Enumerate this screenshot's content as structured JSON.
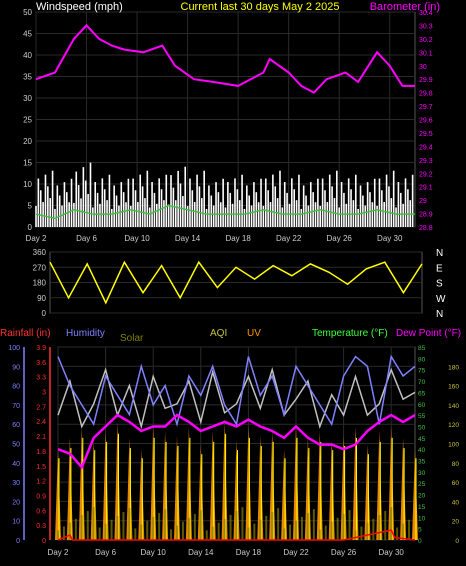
{
  "chart_data": [
    {
      "type": "line",
      "title": "Current last 30 days May 2 2025",
      "ylabel": "Windspeed (mph)",
      "y2label": "Barometer (in)",
      "xticks": [
        "Day 2",
        "Day 6",
        "Day 10",
        "Day 14",
        "Day 18",
        "Day 22",
        "Day 26",
        "Day 30"
      ],
      "ylim": [
        0,
        50
      ],
      "yticks": [
        "0",
        "5",
        "10",
        "15",
        "20",
        "25",
        "30",
        "35",
        "40",
        "45",
        "50"
      ],
      "y2lim": [
        28.8,
        30.4
      ],
      "y2ticks": [
        "28.8",
        "28.9",
        "29",
        "29.1",
        "29.2",
        "29.3",
        "29.4",
        "29.5",
        "29.6",
        "29.7",
        "29.8",
        "29.9",
        "30",
        "30.1",
        "30.2",
        "30.3",
        "30.4"
      ],
      "grid": true,
      "series": [
        {
          "key": "barometer",
          "color": "#ff00ff",
          "x": [
            0,
            1.5,
            3,
            4,
            5,
            6,
            7,
            8.5,
            10,
            11,
            12.5,
            14,
            16,
            17,
            18,
            18.5,
            20,
            21,
            22,
            23,
            24.5,
            25.5,
            27,
            28,
            29,
            30
          ],
          "values": [
            29.9,
            29.95,
            30.2,
            30.3,
            30.2,
            30.15,
            30.12,
            30.1,
            30.15,
            30.0,
            29.9,
            29.88,
            29.85,
            29.9,
            29.95,
            30.05,
            29.95,
            29.85,
            29.8,
            29.9,
            29.95,
            29.88,
            30.1,
            30.0,
            29.85,
            29.85
          ]
        },
        {
          "key": "windspeed_gust",
          "color": "#ffffff",
          "x": [
            0,
            1.5,
            3,
            4.5,
            6,
            7.5,
            9,
            10.5,
            12,
            13.5,
            15,
            16.5,
            18,
            19.5,
            21,
            22.5,
            24,
            25.5,
            27,
            28.5,
            30
          ],
          "values": [
            14,
            12,
            16,
            13,
            12,
            14,
            13,
            15,
            14,
            12,
            13,
            12,
            14,
            13,
            12,
            14,
            13,
            12,
            14,
            13,
            12
          ]
        },
        {
          "key": "windspeed",
          "color": "#40c040",
          "x": [
            0,
            1.5,
            3,
            4.5,
            6,
            7.5,
            9,
            10.5,
            12,
            13.5,
            15,
            16.5,
            18,
            19.5,
            21,
            22.5,
            24,
            25.5,
            27,
            28.5,
            30
          ],
          "values": [
            3,
            2,
            4,
            3,
            3,
            4,
            3,
            5,
            4,
            3,
            3,
            3,
            4,
            3,
            3,
            4,
            3,
            3,
            4,
            3,
            3
          ]
        }
      ]
    },
    {
      "type": "scatter",
      "title": "",
      "ylabel": "",
      "ylim": [
        0,
        360
      ],
      "yticks": [
        "0",
        "90",
        "180",
        "270",
        "360"
      ],
      "y2ticks": [
        "N",
        "W",
        "S",
        "E",
        "N"
      ],
      "series": [
        {
          "key": "wind_direction",
          "color": "#ffff00",
          "x": [
            0,
            1.5,
            3,
            4.5,
            6,
            7.5,
            9,
            10.5,
            12,
            13.5,
            15,
            16.5,
            18,
            19.5,
            21,
            22.5,
            24,
            25.5,
            27,
            28.5,
            30
          ],
          "values": [
            300,
            90,
            290,
            60,
            300,
            120,
            280,
            90,
            300,
            150,
            270,
            200,
            280,
            220,
            290,
            240,
            170,
            260,
            300,
            120,
            290
          ]
        }
      ]
    },
    {
      "type": "line",
      "title": "",
      "xticks": [
        "Day 2",
        "Day 6",
        "Day 10",
        "Day 14",
        "Day 18",
        "Day 22",
        "Day 26",
        "Day 30"
      ],
      "legend": [
        "Rainfall (in)",
        "Humidity",
        "Solar",
        "AQI",
        "UV",
        "Temperature (°F)",
        "Dew Point (°F)"
      ],
      "rain_ylim": [
        0,
        3.9
      ],
      "rain_yticks": [
        "0",
        "0.3",
        "0.6",
        "0.9",
        "1.2",
        "1.5",
        "1.8",
        "2.1",
        "2.4",
        "2.7",
        "3",
        "3.3",
        "3.6",
        "3.9"
      ],
      "hum_ylim": [
        0,
        100
      ],
      "hum_yticks": [
        "0",
        "10",
        "20",
        "30",
        "40",
        "50",
        "60",
        "70",
        "80",
        "90",
        "100"
      ],
      "temp_ylim": [
        0,
        85
      ],
      "temp_yticks": [
        "0",
        "5",
        "10",
        "15",
        "20",
        "25",
        "30",
        "35",
        "40",
        "45",
        "50",
        "55",
        "60",
        "65",
        "70",
        "75",
        "80",
        "85"
      ],
      "aqi_ylim": [
        0,
        200
      ],
      "aqi_yticks": [
        "0",
        "20",
        "40",
        "60",
        "80",
        "100",
        "120",
        "140",
        "160",
        "180"
      ],
      "series": [
        {
          "key": "humidity",
          "color": "#8080ff",
          "x": [
            0,
            1,
            2,
            3,
            4,
            5,
            6,
            7,
            8,
            9,
            10,
            11,
            12,
            13,
            14,
            15,
            16,
            17,
            18,
            19,
            20,
            21,
            22,
            23,
            24,
            25,
            26,
            27,
            28,
            29,
            30
          ],
          "values": [
            95,
            80,
            70,
            60,
            85,
            75,
            65,
            90,
            70,
            80,
            60,
            85,
            75,
            90,
            70,
            60,
            95,
            75,
            85,
            65,
            90,
            80,
            70,
            60,
            85,
            95,
            90,
            60,
            95,
            85,
            90
          ]
        },
        {
          "key": "temperature",
          "color": "#c0c0c0",
          "x": [
            0,
            1,
            2,
            3,
            4,
            5,
            6,
            7,
            8,
            9,
            10,
            11,
            12,
            13,
            14,
            15,
            16,
            17,
            18,
            19,
            20,
            21,
            22,
            23,
            24,
            25,
            26,
            27,
            28,
            29,
            30
          ],
          "values": [
            55,
            70,
            50,
            60,
            75,
            55,
            68,
            50,
            72,
            58,
            60,
            70,
            52,
            74,
            56,
            60,
            72,
            58,
            75,
            55,
            62,
            70,
            50,
            64,
            55,
            72,
            55,
            60,
            75,
            62,
            65
          ]
        },
        {
          "key": "dew_point",
          "color": "#ff00ff",
          "x": [
            0,
            1,
            2,
            3,
            4,
            5,
            6,
            7,
            8,
            9,
            10,
            11,
            12,
            13,
            14,
            15,
            16,
            17,
            18,
            19,
            20,
            21,
            22,
            23,
            24,
            25,
            26,
            27,
            28,
            29,
            30
          ],
          "values": [
            40,
            38,
            32,
            45,
            50,
            55,
            52,
            48,
            50,
            50,
            55,
            52,
            48,
            50,
            52,
            50,
            53,
            50,
            48,
            45,
            50,
            45,
            42,
            42,
            40,
            42,
            48,
            52,
            55,
            52,
            55
          ]
        },
        {
          "key": "solar_max",
          "color": "#ffa500",
          "x": [
            0,
            1,
            2,
            3,
            4,
            5,
            6,
            7,
            8,
            9,
            10,
            11,
            12,
            13,
            14,
            15,
            16,
            17,
            18,
            19,
            20,
            21,
            22,
            23,
            24,
            25,
            26,
            27,
            28,
            29,
            30
          ],
          "values": [
            40,
            45,
            50,
            44,
            48,
            52,
            45,
            40,
            50,
            48,
            46,
            50,
            42,
            48,
            52,
            44,
            50,
            46,
            48,
            40,
            50,
            45,
            48,
            44,
            46,
            50,
            42,
            48,
            50,
            45,
            40
          ]
        },
        {
          "key": "rainfall",
          "color": "#ff0000",
          "x": [
            0,
            1,
            1.2,
            4,
            8,
            12,
            16,
            20,
            24,
            28,
            28.3,
            30
          ],
          "values": [
            0,
            0.1,
            0.0,
            0,
            0,
            0,
            0,
            0,
            0,
            0.2,
            0.05,
            0
          ]
        }
      ]
    }
  ]
}
